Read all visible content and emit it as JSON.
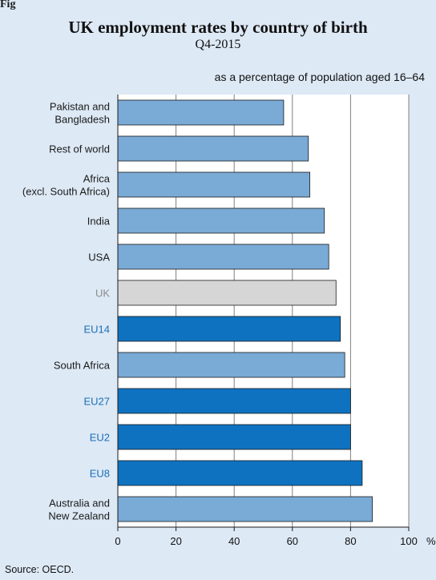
{
  "figure": {
    "tag": "Figure",
    "title": "UK employment rates by country of birth",
    "subtitle": "Q4-2015",
    "note": "as a percentage of population aged 16–64",
    "source": "Source: OECD."
  },
  "colors": {
    "background": "#dde9f5",
    "plot_area": "#ffffff",
    "bar_non_eu": "#7aaad6",
    "bar_eu": "#0e72c0",
    "bar_uk": "#d6d6d6",
    "label_non_eu": "#1a1a1a",
    "label_eu": "#1a6fb8",
    "label_uk": "#8c8c8c"
  },
  "chart_data": {
    "type": "bar",
    "orientation": "horizontal",
    "unit": "%",
    "xlim": [
      0,
      100
    ],
    "xticks": [
      0,
      20,
      40,
      60,
      80,
      100
    ],
    "grid": true,
    "categories": [
      {
        "label": [
          "Pakistan and",
          "Bangladesh"
        ],
        "value": 57,
        "group": "non_eu"
      },
      {
        "label": [
          "Rest of world"
        ],
        "value": 65.5,
        "group": "non_eu"
      },
      {
        "label": [
          "Africa",
          "(excl. South Africa)"
        ],
        "value": 66,
        "group": "non_eu"
      },
      {
        "label": [
          "India"
        ],
        "value": 71,
        "group": "non_eu"
      },
      {
        "label": [
          "USA"
        ],
        "value": 72.5,
        "group": "non_eu"
      },
      {
        "label": [
          "UK"
        ],
        "value": 75,
        "group": "uk"
      },
      {
        "label": [
          "EU14"
        ],
        "value": 76.5,
        "group": "eu"
      },
      {
        "label": [
          "South Africa"
        ],
        "value": 78,
        "group": "non_eu"
      },
      {
        "label": [
          "EU27"
        ],
        "value": 80,
        "group": "eu"
      },
      {
        "label": [
          "EU2"
        ],
        "value": 80,
        "group": "eu"
      },
      {
        "label": [
          "EU8"
        ],
        "value": 84,
        "group": "eu"
      },
      {
        "label": [
          "Australia and",
          "New Zealand"
        ],
        "value": 87.5,
        "group": "non_eu"
      }
    ]
  }
}
